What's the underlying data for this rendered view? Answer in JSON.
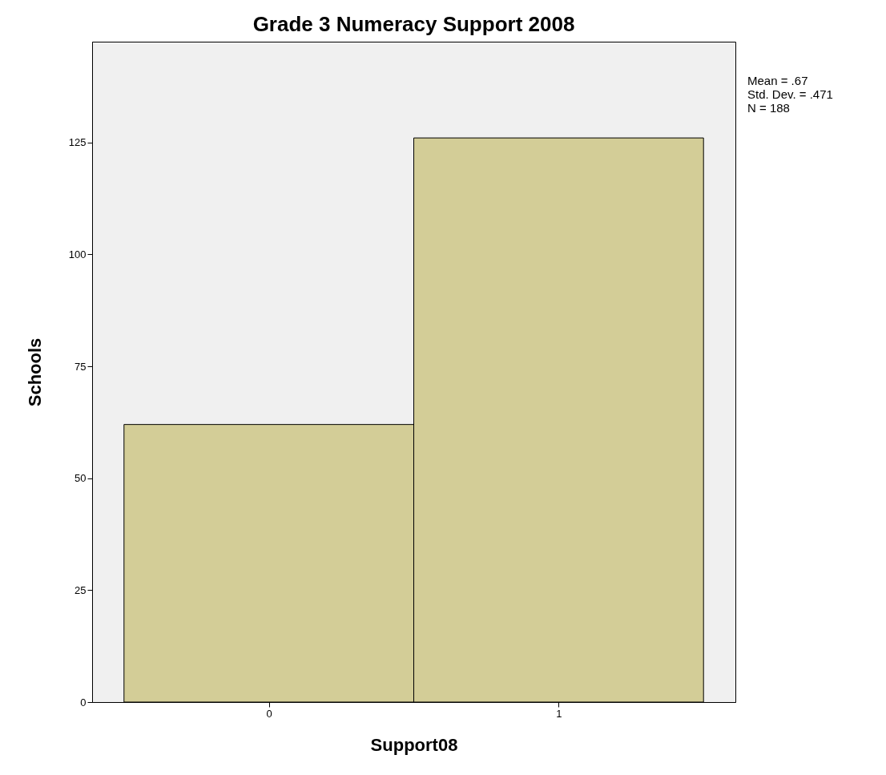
{
  "chart_data": {
    "type": "histogram",
    "title": "Grade 3 Numeracy Support 2008",
    "xlabel": "Support08",
    "ylabel": "Schools",
    "bins": [
      -0.5,
      0.5,
      1.5
    ],
    "values": [
      62,
      126
    ],
    "color": "#d3cd97",
    "xlim": [
      -0.61,
      1.61
    ],
    "xticks": [
      0,
      1
    ],
    "ylim": [
      0,
      147.5
    ],
    "yticks": [
      0,
      25,
      50,
      75,
      100,
      125
    ],
    "annotations": [
      "Mean = .67",
      "Std. Dev. = .471",
      "N = 188"
    ]
  }
}
